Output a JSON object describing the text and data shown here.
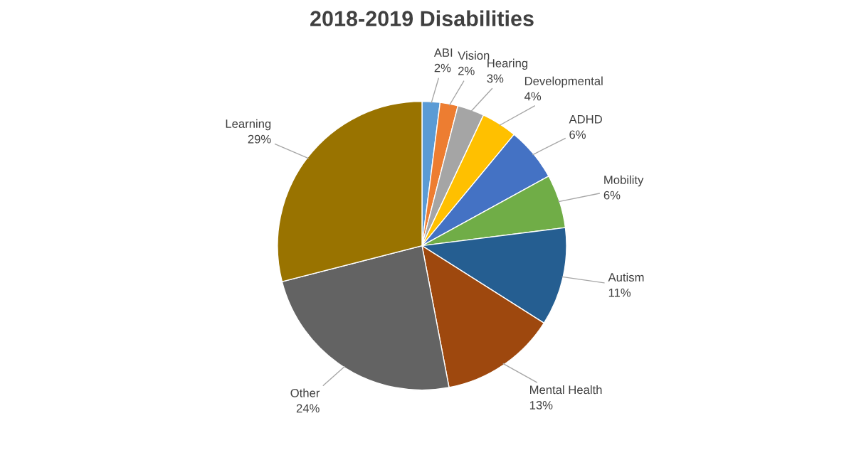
{
  "chart_data": {
    "type": "pie",
    "title": "2018-2019 Disabilities",
    "categories": [
      "ABI",
      "Vision",
      "Hearing",
      "Developmental",
      "ADHD",
      "Mobility",
      "Autism",
      "Mental Health",
      "Other",
      "Learning"
    ],
    "values": [
      2,
      2,
      3,
      4,
      6,
      6,
      11,
      13,
      24,
      29
    ],
    "value_labels": [
      "2%",
      "2%",
      "3%",
      "4%",
      "6%",
      "6%",
      "11%",
      "13%",
      "24%",
      "29%"
    ],
    "colors": [
      "#5b9bd5",
      "#ed7d31",
      "#a5a5a5",
      "#ffc000",
      "#4472c4",
      "#70ad47",
      "#255e91",
      "#9e480e",
      "#636363",
      "#997300"
    ],
    "legend": false
  }
}
